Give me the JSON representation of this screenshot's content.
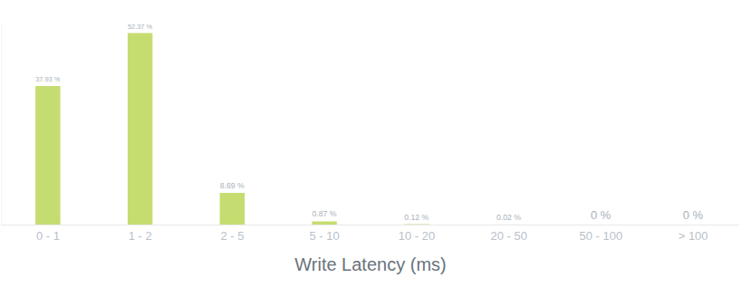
{
  "chart_data": {
    "type": "bar",
    "x_label": "Write Latency (ms)",
    "categories": [
      "0 - 1",
      "1 - 2",
      "2 - 5",
      "5 - 10",
      "10 - 20",
      "20 - 50",
      "50 - 100",
      "> 100"
    ],
    "values": [
      37.93,
      52.37,
      8.69,
      0.87,
      0.12,
      0.02,
      0,
      0
    ],
    "value_labels": [
      "37.93 %",
      "52.37 %",
      "8.69 %",
      "0.87 %",
      "0.12 %",
      "0.02 %",
      "0 %",
      "0 %"
    ],
    "data_labels": true,
    "color": "#c5dd70",
    "ylim": [
      0,
      55
    ],
    "grid": false,
    "tick_labels": "x"
  }
}
